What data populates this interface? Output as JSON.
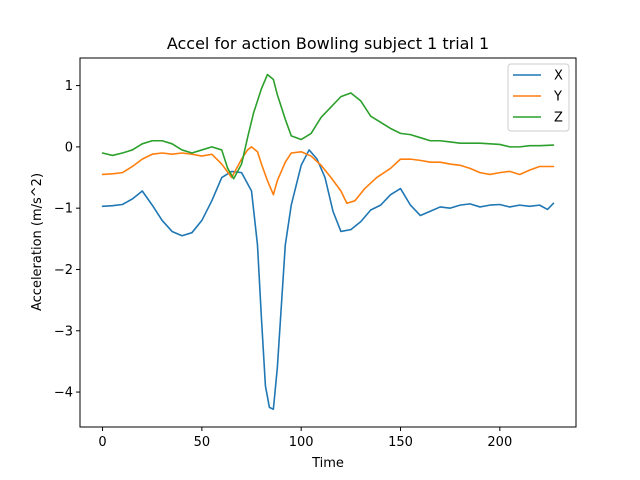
{
  "chart_data": {
    "type": "line",
    "title": "Accel for action Bowling subject 1 trial 1",
    "xlabel": "Time",
    "ylabel": "Acceleration (m/s^2)",
    "xlim": [
      -11.35,
      238.35
    ],
    "ylim": [
      -4.57,
      1.45
    ],
    "xticks": [
      0,
      50,
      100,
      150,
      200
    ],
    "yticks": [
      -4,
      -3,
      -2,
      -1,
      0,
      1
    ],
    "xtick_labels": [
      "0",
      "50",
      "100",
      "150",
      "200"
    ],
    "ytick_labels": [
      "−4",
      "−3",
      "−2",
      "−1",
      "0",
      "1"
    ],
    "legend_position": "top-right",
    "series": [
      {
        "name": "X",
        "color": "#1f77b4",
        "points": [
          [
            0,
            -0.97
          ],
          [
            5,
            -0.96
          ],
          [
            10,
            -0.94
          ],
          [
            15,
            -0.85
          ],
          [
            20,
            -0.72
          ],
          [
            25,
            -0.95
          ],
          [
            30,
            -1.2
          ],
          [
            35,
            -1.38
          ],
          [
            40,
            -1.45
          ],
          [
            45,
            -1.4
          ],
          [
            50,
            -1.2
          ],
          [
            55,
            -0.88
          ],
          [
            60,
            -0.5
          ],
          [
            65,
            -0.4
          ],
          [
            70,
            -0.42
          ],
          [
            75,
            -0.72
          ],
          [
            78,
            -1.6
          ],
          [
            80,
            -2.8
          ],
          [
            82,
            -3.9
          ],
          [
            84,
            -4.25
          ],
          [
            86,
            -4.28
          ],
          [
            88,
            -3.6
          ],
          [
            90,
            -2.6
          ],
          [
            92,
            -1.6
          ],
          [
            95,
            -0.95
          ],
          [
            100,
            -0.3
          ],
          [
            104,
            -0.05
          ],
          [
            108,
            -0.2
          ],
          [
            112,
            -0.5
          ],
          [
            116,
            -1.05
          ],
          [
            120,
            -1.38
          ],
          [
            125,
            -1.35
          ],
          [
            130,
            -1.22
          ],
          [
            135,
            -1.03
          ],
          [
            140,
            -0.95
          ],
          [
            145,
            -0.78
          ],
          [
            150,
            -0.68
          ],
          [
            155,
            -0.95
          ],
          [
            160,
            -1.12
          ],
          [
            165,
            -1.05
          ],
          [
            170,
            -0.98
          ],
          [
            175,
            -1.0
          ],
          [
            180,
            -0.95
          ],
          [
            185,
            -0.93
          ],
          [
            190,
            -0.98
          ],
          [
            195,
            -0.95
          ],
          [
            200,
            -0.94
          ],
          [
            205,
            -0.98
          ],
          [
            210,
            -0.95
          ],
          [
            215,
            -0.97
          ],
          [
            220,
            -0.95
          ],
          [
            224,
            -1.02
          ],
          [
            227,
            -0.92
          ]
        ]
      },
      {
        "name": "Y",
        "color": "#ff7f0e",
        "points": [
          [
            0,
            -0.45
          ],
          [
            5,
            -0.44
          ],
          [
            10,
            -0.42
          ],
          [
            15,
            -0.32
          ],
          [
            20,
            -0.2
          ],
          [
            25,
            -0.12
          ],
          [
            30,
            -0.1
          ],
          [
            35,
            -0.12
          ],
          [
            40,
            -0.1
          ],
          [
            45,
            -0.12
          ],
          [
            50,
            -0.15
          ],
          [
            55,
            -0.12
          ],
          [
            60,
            -0.28
          ],
          [
            65,
            -0.5
          ],
          [
            68,
            -0.32
          ],
          [
            70,
            -0.2
          ],
          [
            73,
            -0.05
          ],
          [
            75,
            0.0
          ],
          [
            78,
            -0.08
          ],
          [
            80,
            -0.28
          ],
          [
            83,
            -0.55
          ],
          [
            86,
            -0.78
          ],
          [
            88,
            -0.55
          ],
          [
            92,
            -0.25
          ],
          [
            95,
            -0.1
          ],
          [
            100,
            -0.08
          ],
          [
            105,
            -0.15
          ],
          [
            110,
            -0.3
          ],
          [
            115,
            -0.5
          ],
          [
            120,
            -0.72
          ],
          [
            123,
            -0.92
          ],
          [
            127,
            -0.88
          ],
          [
            132,
            -0.68
          ],
          [
            138,
            -0.5
          ],
          [
            145,
            -0.35
          ],
          [
            150,
            -0.2
          ],
          [
            155,
            -0.2
          ],
          [
            160,
            -0.22
          ],
          [
            165,
            -0.25
          ],
          [
            170,
            -0.25
          ],
          [
            175,
            -0.28
          ],
          [
            180,
            -0.3
          ],
          [
            185,
            -0.35
          ],
          [
            190,
            -0.42
          ],
          [
            195,
            -0.45
          ],
          [
            200,
            -0.42
          ],
          [
            205,
            -0.4
          ],
          [
            210,
            -0.45
          ],
          [
            215,
            -0.38
          ],
          [
            220,
            -0.32
          ],
          [
            227,
            -0.32
          ]
        ]
      },
      {
        "name": "Z",
        "color": "#2ca02c",
        "points": [
          [
            0,
            -0.1
          ],
          [
            5,
            -0.14
          ],
          [
            10,
            -0.1
          ],
          [
            15,
            -0.05
          ],
          [
            20,
            0.05
          ],
          [
            25,
            0.1
          ],
          [
            30,
            0.1
          ],
          [
            35,
            0.05
          ],
          [
            40,
            -0.05
          ],
          [
            45,
            -0.1
          ],
          [
            50,
            -0.05
          ],
          [
            55,
            0.0
          ],
          [
            60,
            -0.05
          ],
          [
            63,
            -0.35
          ],
          [
            66,
            -0.52
          ],
          [
            70,
            -0.28
          ],
          [
            73,
            0.15
          ],
          [
            76,
            0.55
          ],
          [
            80,
            0.95
          ],
          [
            83,
            1.18
          ],
          [
            86,
            1.1
          ],
          [
            88,
            0.85
          ],
          [
            92,
            0.45
          ],
          [
            95,
            0.18
          ],
          [
            100,
            0.12
          ],
          [
            105,
            0.22
          ],
          [
            110,
            0.48
          ],
          [
            115,
            0.65
          ],
          [
            120,
            0.82
          ],
          [
            125,
            0.88
          ],
          [
            130,
            0.75
          ],
          [
            135,
            0.5
          ],
          [
            140,
            0.4
          ],
          [
            145,
            0.3
          ],
          [
            150,
            0.22
          ],
          [
            155,
            0.2
          ],
          [
            160,
            0.15
          ],
          [
            165,
            0.1
          ],
          [
            170,
            0.1
          ],
          [
            175,
            0.08
          ],
          [
            180,
            0.06
          ],
          [
            185,
            0.06
          ],
          [
            190,
            0.06
          ],
          [
            195,
            0.05
          ],
          [
            200,
            0.04
          ],
          [
            205,
            0.0
          ],
          [
            210,
            0.0
          ],
          [
            215,
            0.02
          ],
          [
            220,
            0.02
          ],
          [
            227,
            0.03
          ]
        ]
      }
    ]
  }
}
